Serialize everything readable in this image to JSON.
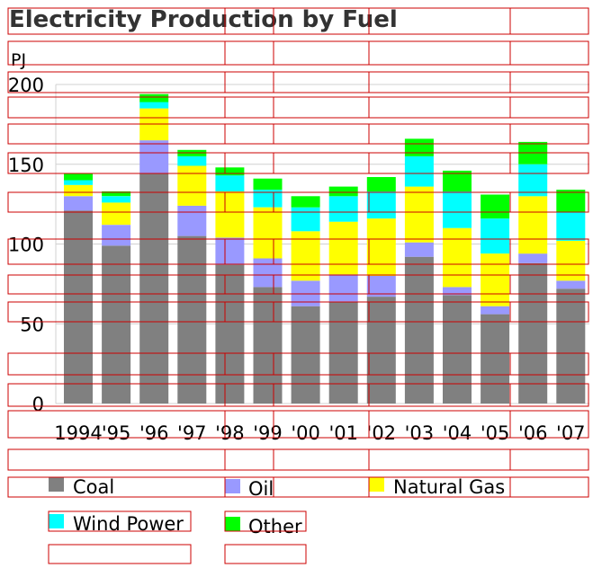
{
  "chart_data": {
    "type": "bar",
    "stacked": true,
    "title": "Electricity Production by Fuel",
    "ylabel": "PJ",
    "xlabel": "",
    "ylim": [
      0,
      200
    ],
    "yticks": [
      "0",
      "50",
      "100",
      "150",
      "200"
    ],
    "grid": true,
    "legend_position": "bottom",
    "categories": [
      "1994",
      "'95",
      "'96",
      "'97",
      "'98",
      "'99",
      "'00",
      "'01",
      "'02",
      "'03",
      "'04",
      "'05",
      "'06",
      "'07"
    ],
    "series": [
      {
        "name": "Coal",
        "color": "#808080",
        "values": [
          121,
          99,
          144,
          105,
          87,
          73,
          61,
          64,
          67,
          92,
          68,
          56,
          88,
          72
        ]
      },
      {
        "name": "Oil",
        "color": "#9999ff",
        "values": [
          9,
          13,
          21,
          19,
          17,
          18,
          16,
          17,
          13,
          9,
          5,
          5,
          6,
          5
        ]
      },
      {
        "name": "Natural Gas",
        "color": "#ffff00",
        "values": [
          7,
          14,
          20,
          25,
          29,
          32,
          31,
          33,
          36,
          35,
          37,
          33,
          36,
          25
        ]
      },
      {
        "name": "Wind Power",
        "color": "#00ffff",
        "values": [
          3,
          4,
          4,
          6,
          10,
          11,
          15,
          16,
          17,
          19,
          23,
          22,
          20,
          18
        ]
      },
      {
        "name": "Other",
        "color": "#00ff00",
        "values": [
          4,
          3,
          5,
          4,
          5,
          7,
          7,
          6,
          9,
          11,
          13,
          15,
          14,
          14
        ]
      }
    ]
  }
}
